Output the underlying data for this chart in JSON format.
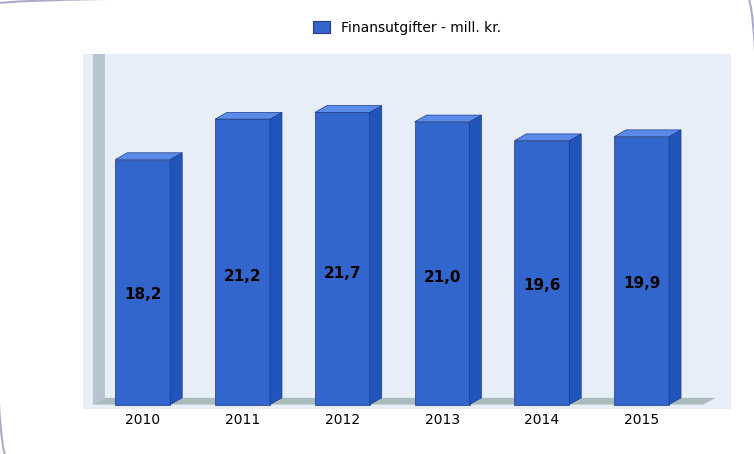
{
  "categories": [
    "2010",
    "2011",
    "2012",
    "2013",
    "2014",
    "2015"
  ],
  "values": [
    18.2,
    21.2,
    21.7,
    21.0,
    19.6,
    19.9
  ],
  "bar_color_front": "#3366CC",
  "bar_color_top": "#5588EE",
  "bar_color_side": "#2244AA",
  "bar_color_dark_top": "#1A3A8A",
  "background_color": "#E8EEF8",
  "outer_background": "#FFFFFF",
  "floor_color": "#AABBC0",
  "wall_left_color": "#8899A0",
  "legend_label": "Finansutgifter - mill. kr.",
  "legend_color": "#3366CC",
  "label_fontsize": 11,
  "tick_fontsize": 10,
  "legend_fontsize": 10,
  "ylim": [
    0,
    26
  ],
  "value_labels": [
    "18,2",
    "21,2",
    "21,7",
    "21,0",
    "19,6",
    "19,9"
  ]
}
